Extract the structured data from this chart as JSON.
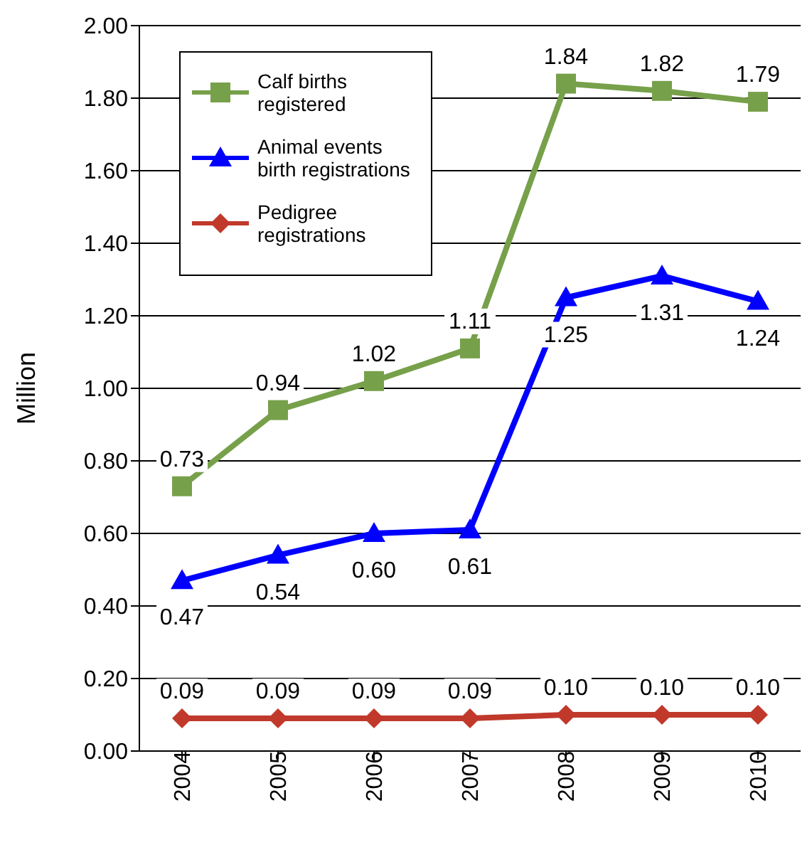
{
  "chart_data": {
    "type": "line",
    "ylabel": "Million",
    "categories": [
      "2004",
      "2005",
      "2006",
      "2007",
      "2008",
      "2009",
      "2010"
    ],
    "ylim": [
      0,
      2
    ],
    "yticks": [
      {
        "value": 0,
        "label": "0.00"
      },
      {
        "value": 0.2,
        "label": "0.20"
      },
      {
        "value": 0.4,
        "label": "0.40"
      },
      {
        "value": 0.6,
        "label": "0.60"
      },
      {
        "value": 0.8,
        "label": "0.80"
      },
      {
        "value": 1,
        "label": "1.00"
      },
      {
        "value": 1.2,
        "label": "1.20"
      },
      {
        "value": 1.4,
        "label": "1.40"
      },
      {
        "value": 1.6,
        "label": "1.60"
      },
      {
        "value": 1.8,
        "label": "1.80"
      },
      {
        "value": 2,
        "label": "2.00"
      }
    ],
    "grid": "y",
    "legend": "top left",
    "series": [
      {
        "name": "Calf births registered",
        "color": "#77a04a",
        "marker": "square",
        "values": [
          0.73,
          0.94,
          1.02,
          1.11,
          1.84,
          1.82,
          1.79
        ],
        "value_labels": [
          "0.73",
          "0.94",
          "1.02",
          "1.11",
          "1.84",
          "1.82",
          "1.79"
        ]
      },
      {
        "name": "Animal events birth registrations",
        "color": "#0000ff",
        "marker": "triangle",
        "values": [
          0.47,
          0.54,
          0.6,
          0.61,
          1.25,
          1.31,
          1.24
        ],
        "value_labels": [
          "0.47",
          "0.54",
          "0.60",
          "0.61",
          "1.25",
          "1.31",
          "1.24"
        ]
      },
      {
        "name": "Pedigree registrations",
        "color": "#c0392b",
        "marker": "diamond",
        "values": [
          0.09,
          0.09,
          0.09,
          0.09,
          0.1,
          0.1,
          0.1
        ],
        "value_labels": [
          "0.09",
          "0.09",
          "0.09",
          "0.09",
          "0.10",
          "0.10",
          "0.10"
        ]
      }
    ]
  }
}
